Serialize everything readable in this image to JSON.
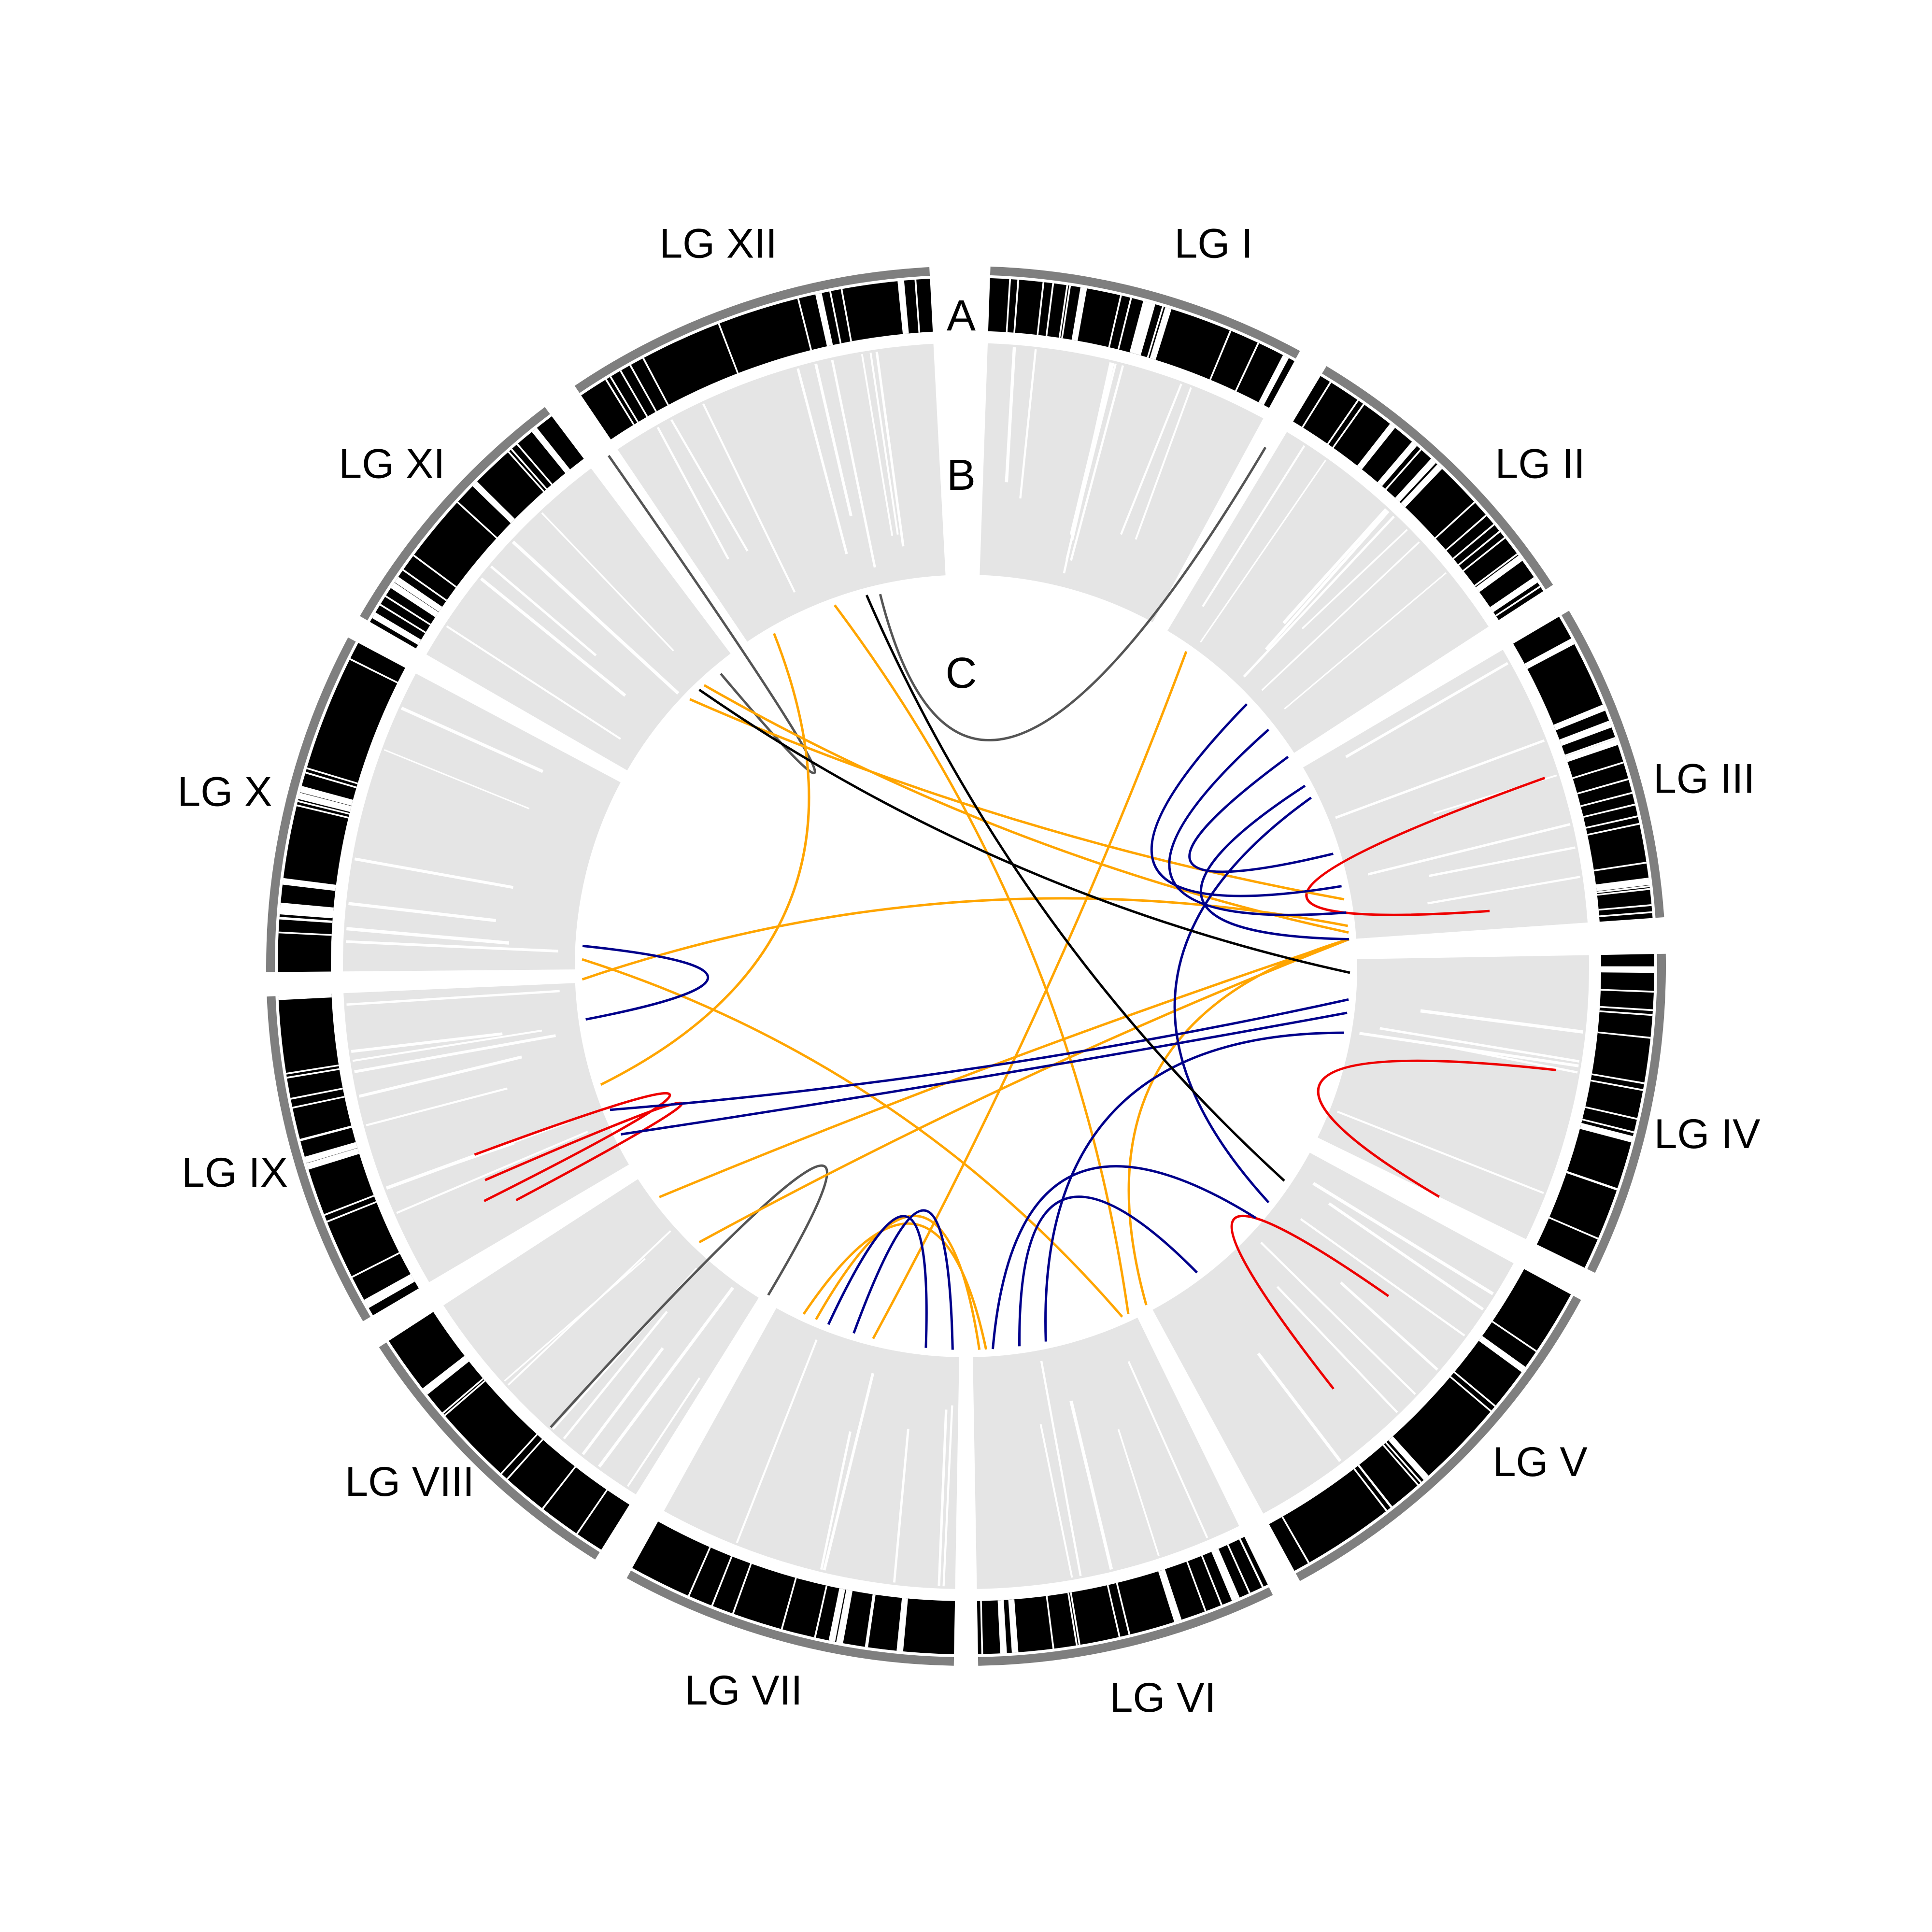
{
  "figure": {
    "track_labels": {
      "a": "A",
      "b": "B",
      "c": "C"
    },
    "colors": {
      "background": "#ffffff",
      "ideogram_outline": "#7f7f7f",
      "marker_band": "#000000",
      "marker_gap": "#ffffff",
      "track_b_fill": "#e5e5e5",
      "link_within_lg": "#555555",
      "link_red": "#ee0000",
      "link_orange": "#ffa500",
      "link_navy": "#00008b",
      "link_black": "#000000"
    }
  },
  "chromosomes": [
    {
      "id": "lg1",
      "label": "LG I"
    },
    {
      "id": "lg2",
      "label": "LG II"
    },
    {
      "id": "lg3",
      "label": "LG III"
    },
    {
      "id": "lg4",
      "label": "LG IV"
    },
    {
      "id": "lg5",
      "label": "LG V"
    },
    {
      "id": "lg6",
      "label": "LG VI"
    },
    {
      "id": "lg7",
      "label": "LG VII"
    },
    {
      "id": "lg8",
      "label": "LG VIII"
    },
    {
      "id": "lg9",
      "label": "LG IX"
    },
    {
      "id": "lg10",
      "label": "LG X"
    },
    {
      "id": "lg11",
      "label": "LG XI"
    },
    {
      "id": "lg12",
      "label": "LG XII"
    }
  ]
}
